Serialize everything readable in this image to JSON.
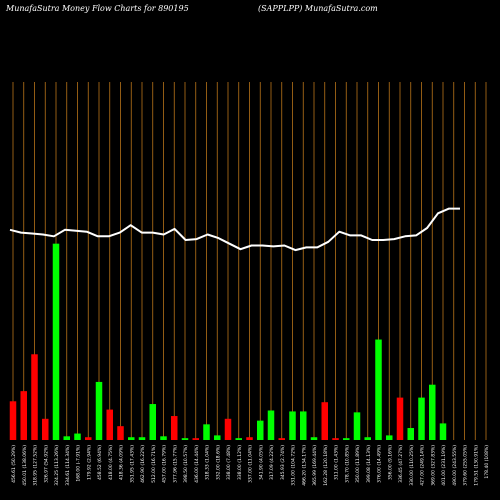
{
  "header": {
    "left": "MunafaSutra  Money Flow  Charts for 890195",
    "right": "(SAPPLPP) MunafaSutra.com"
  },
  "chart_data": {
    "type": "bar",
    "title": "MunafaSutra  Money Flow  Charts for 890195",
    "subtitle": "(SAPPLPP) MunafaSutra.com",
    "colors": {
      "background": "#000000",
      "up": "#00ff00",
      "down": "#ff0000",
      "line": "#ffffff",
      "grid": "#b8741a",
      "text": "#ffffff"
    },
    "grid": "vertical",
    "categories": [
      "456.61 (50.29%)",
      "450.01 (138.06%)",
      "318.95 (127.52%)",
      "326.97 (54.92%)",
      "324.25 (113.26%)",
      "334.61 (114.34%)",
      "168.00 (-7.91%)",
      "179.92 (2.94%)",
      "458.52 (6.94%)",
      "418.00 (4.75%)",
      "418.36 (4.09%)",
      "351.95 (17.43%)",
      "462.90 (16.22%)",
      "512.00 (16.71%)",
      "457.00 (16.79%)",
      "377.96 (15.77%)",
      "398.50 (10.57%)",
      "436.00 (14.44%)",
      "318.33 (1.04%)",
      "332.00 (18.6%)",
      "338.00 (7.48%)",
      "338.00 (1.12%)",
      "337.00 (11.04%)",
      "341.90 (4.05%)",
      "317.09 (4.22%)",
      "345.93 (2.74%)",
      "331.00 (104.72%)",
      "466.20 (134.17%)",
      "365.99 (169.44%)",
      "162.28 (120.18%)",
      "311.00 (1.43%)",
      "378.70 (10.85%)",
      "350.00 (11.89%)",
      "399.08 (14.13%)",
      "376.00 (14.49%)",
      "356.00 (9.16%)",
      "336.45 (47.27%)",
      "330.00 (110.25%)",
      "427.00 (249.14%)",
      "369.00 (327.83%)",
      "401.00 (231.19%)",
      "490.00 (243.55%)",
      "379.60 (255.05%)",
      "179.51 (130.91%)",
      "178.40 (108%)"
    ],
    "bar_colors": [
      "red",
      "red",
      "red",
      "red",
      "green",
      "green",
      "green",
      "red",
      "green",
      "red",
      "red",
      "green",
      "green",
      "green",
      "green",
      "red",
      "green",
      "red",
      "green",
      "green",
      "red",
      "green",
      "red",
      "green",
      "green",
      "red",
      "green",
      "green",
      "green",
      "red",
      "red",
      "green",
      "green",
      "green",
      "green",
      "green",
      "red",
      "green",
      "green",
      "green",
      "green",
      "green",
      "green",
      "green",
      "green"
    ],
    "values": [
      42,
      53,
      93,
      23,
      213,
      4,
      7,
      3,
      63,
      33,
      15,
      3,
      3,
      39,
      4,
      26,
      2,
      2,
      17,
      5,
      23,
      2,
      3,
      21,
      32,
      2,
      31,
      31,
      3,
      41,
      2,
      2,
      30,
      3,
      109,
      5,
      46,
      13,
      46,
      60,
      18,
      0,
      0,
      0,
      0
    ],
    "line_values": [
      228,
      225,
      224,
      223,
      221,
      228,
      227,
      226,
      221,
      221,
      225,
      233,
      225,
      225,
      223,
      229,
      217,
      218,
      223,
      219,
      213,
      207,
      211,
      211,
      210,
      211,
      206,
      209,
      209,
      215,
      226,
      222,
      222,
      217,
      217,
      218,
      221,
      222,
      230,
      246,
      251,
      251
    ],
    "ylim": [
      0,
      230
    ],
    "xlabel": "",
    "ylabel": ""
  }
}
